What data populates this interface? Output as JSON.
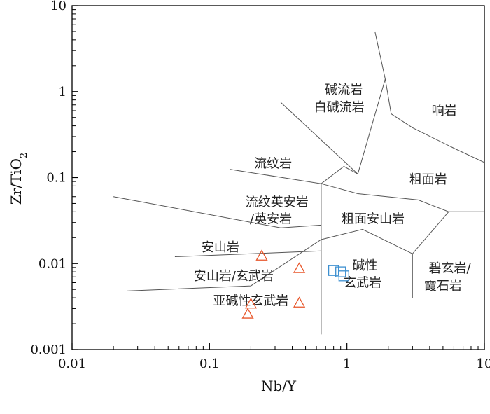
{
  "chart_data": {
    "type": "scatter",
    "title": "",
    "xlabel": "Nb/Y",
    "ylabel": {
      "main": "Zr/TiO",
      "subscript": "2"
    },
    "xscale": "log",
    "yscale": "log",
    "xlim": [
      0.01,
      10
    ],
    "ylim": [
      0.001,
      10
    ],
    "xticks": [
      "0.01",
      "0.1",
      "1",
      "10"
    ],
    "yticks": [
      "0.001",
      "0.01",
      "0.1",
      "1",
      "10"
    ],
    "grid": false,
    "colors": {
      "triangle": "#e8562a",
      "square": "#3c8fd0",
      "boundary": "#555555",
      "axis": "#000000"
    },
    "boundaries": [
      [
        [
          1.6,
          5.0
        ],
        [
          1.9,
          1.4
        ],
        [
          2.1,
          0.55
        ],
        [
          3.0,
          0.38
        ],
        [
          6.0,
          0.22
        ],
        [
          10.0,
          0.15
        ]
      ],
      [
        [
          1.9,
          1.4
        ],
        [
          1.2,
          0.11
        ],
        [
          0.33,
          0.75
        ]
      ],
      [
        [
          1.2,
          0.11
        ],
        [
          0.95,
          0.135
        ],
        [
          0.65,
          0.085
        ],
        [
          0.14,
          0.125
        ]
      ],
      [
        [
          0.65,
          0.085
        ],
        [
          0.65,
          0.0015
        ]
      ],
      [
        [
          0.65,
          0.085
        ],
        [
          1.2,
          0.065
        ],
        [
          3.3,
          0.055
        ],
        [
          5.5,
          0.04
        ],
        [
          10.0,
          0.04
        ]
      ],
      [
        [
          0.02,
          0.06
        ],
        [
          0.33,
          0.026
        ],
        [
          0.65,
          0.028
        ]
      ],
      [
        [
          0.056,
          0.012
        ],
        [
          0.65,
          0.014
        ]
      ],
      [
        [
          0.025,
          0.0048
        ],
        [
          0.2,
          0.0055
        ],
        [
          0.65,
          0.019
        ],
        [
          1.3,
          0.025
        ],
        [
          3.0,
          0.013
        ],
        [
          5.5,
          0.04
        ]
      ],
      [
        [
          3.0,
          0.013
        ],
        [
          3.0,
          0.004
        ]
      ]
    ],
    "fields": [
      {
        "label": "碱流岩",
        "x": 0.95,
        "y": 1.05
      },
      {
        "label": "白碱流岩",
        "x": 0.88,
        "y": 0.66
      },
      {
        "label": "响岩",
        "x": 5.1,
        "y": 0.6
      },
      {
        "label": "流纹岩",
        "x": 0.29,
        "y": 0.145
      },
      {
        "label": "粗面岩",
        "x": 3.9,
        "y": 0.095
      },
      {
        "label": "流纹英安岩",
        "x": 0.31,
        "y": 0.052
      },
      {
        "label": "/英安岩",
        "x": 0.28,
        "y": 0.033
      },
      {
        "label": "粗面安山岩",
        "x": 1.55,
        "y": 0.033
      },
      {
        "label": "安山岩",
        "x": 0.12,
        "y": 0.0155
      },
      {
        "label": "碱性",
        "x": 1.35,
        "y": 0.0095
      },
      {
        "label": "碧玄岩/",
        "x": 5.6,
        "y": 0.0088
      },
      {
        "label": "安山岩/玄武岩",
        "x": 0.15,
        "y": 0.0072
      },
      {
        "label": "玄武岩",
        "x": 1.3,
        "y": 0.006
      },
      {
        "label": "霞石岩",
        "x": 5.0,
        "y": 0.0055
      },
      {
        "label": "亚碱性玄武岩",
        "x": 0.2,
        "y": 0.0037
      }
    ],
    "series": [
      {
        "marker": "triangle",
        "points": [
          [
            0.24,
            0.0123
          ],
          [
            0.45,
            0.0088
          ],
          [
            0.2,
            0.0034
          ],
          [
            0.45,
            0.0035
          ],
          [
            0.19,
            0.0026
          ]
        ]
      },
      {
        "marker": "square",
        "points": [
          [
            0.8,
            0.0083
          ],
          [
            0.9,
            0.008
          ],
          [
            0.95,
            0.0072
          ]
        ]
      }
    ]
  }
}
